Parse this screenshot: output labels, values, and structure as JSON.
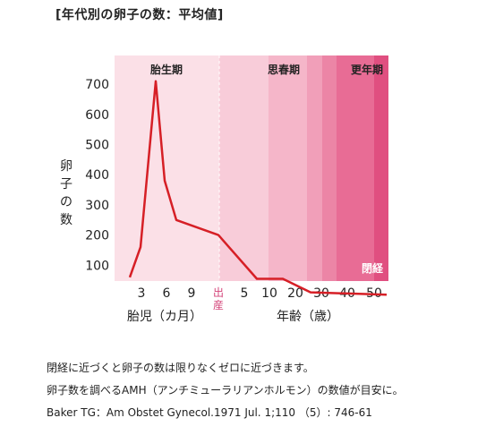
{
  "title": "[年代別の卵子の数：平均値]",
  "chart_data": {
    "type": "line",
    "ylabel": "卵子の数",
    "yticks": [
      100,
      200,
      300,
      400,
      500,
      600,
      700
    ],
    "ylim": [
      0,
      800
    ],
    "xticks_fetal": [
      "3",
      "6",
      "9"
    ],
    "birth_label": "出産",
    "xticks_age": [
      "5",
      "10",
      "20",
      "30",
      "40",
      "50"
    ],
    "xlabel_fetal": "胎児（カ月）",
    "xlabel_age": "年齢（歳）",
    "bands": [
      {
        "label": "胎生期",
        "color": "#fbe0e7"
      },
      {
        "label": "",
        "color": "#f8ccd9"
      },
      {
        "label": "思春期",
        "color": "#f5b6c9"
      },
      {
        "label": "",
        "color": "#f19fb9"
      },
      {
        "label": "",
        "color": "#ec85a6"
      },
      {
        "label": "更年期",
        "color": "#e86c95"
      },
      {
        "label": "",
        "color": "#e04f80"
      }
    ],
    "menopause_label": "閉経",
    "line_color": "#d61f26",
    "series": [
      {
        "values": [
          {
            "x": "2.5",
            "y": 60
          },
          {
            "x": "3",
            "y": 160
          },
          {
            "x": "5",
            "y": 710
          },
          {
            "x": "6",
            "y": 380
          },
          {
            "x": "7",
            "y": 250
          },
          {
            "x": "出産",
            "y": 200
          },
          {
            "x": "8",
            "y": 55
          },
          {
            "x": "12",
            "y": 55
          },
          {
            "x": "25",
            "y": 10
          },
          {
            "x": "50",
            "y": 2
          }
        ]
      }
    ],
    "grid": false
  },
  "notes": [
    "閉経に近づくと卵子の数は限りなくゼロに近づきます。",
    "卵子数を調べるAMH（アンチミューラリアンホルモン）の数値が目安に。",
    "Baker TG：Am Obstet Gynecol.1971 Jul. 1;110 （5）: 746-61"
  ]
}
